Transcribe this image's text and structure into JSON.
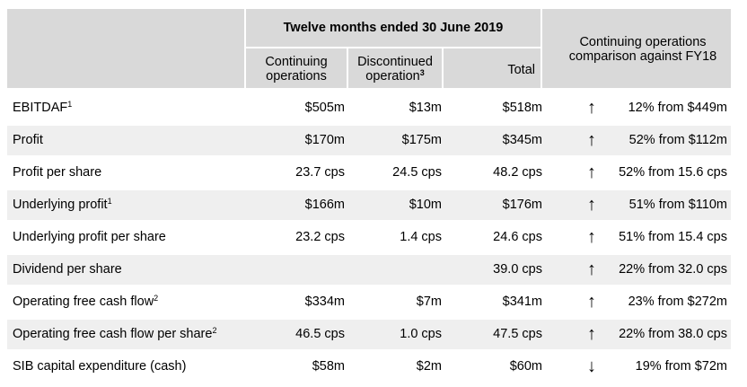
{
  "header": {
    "period": "Twelve months ended 30 June 2019",
    "col_continuing": "Continuing operations",
    "col_discontinued": "Discontinued operation",
    "col_discontinued_sup": "3",
    "col_total": "Total",
    "col_comparison": "Continuing operations comparison against FY18"
  },
  "rows": [
    {
      "label": "EBITDAF",
      "sup": "1",
      "continuing": "$505m",
      "discontinued": "$13m",
      "total": "$518m",
      "arrow": "↑",
      "comparison": "12% from $449m"
    },
    {
      "label": "Profit",
      "sup": "",
      "continuing": "$170m",
      "discontinued": "$175m",
      "total": "$345m",
      "arrow": "↑",
      "comparison": "52% from $112m"
    },
    {
      "label": "Profit per share",
      "sup": "",
      "continuing": "23.7 cps",
      "discontinued": "24.5 cps",
      "total": "48.2 cps",
      "arrow": "↑",
      "comparison": "52% from 15.6 cps"
    },
    {
      "label": "Underlying profit",
      "sup": "1",
      "continuing": "$166m",
      "discontinued": "$10m",
      "total": "$176m",
      "arrow": "↑",
      "comparison": "51% from $110m"
    },
    {
      "label": "Underlying profit per share",
      "sup": "",
      "continuing": "23.2 cps",
      "discontinued": "1.4 cps",
      "total": "24.6 cps",
      "arrow": "↑",
      "comparison": "51% from 15.4 cps"
    },
    {
      "label": "Dividend per share",
      "sup": "",
      "continuing": "",
      "discontinued": "",
      "total": "39.0 cps",
      "arrow": "↑",
      "comparison": "22% from 32.0 cps"
    },
    {
      "label": "Operating free cash flow",
      "sup": "2",
      "continuing": "$334m",
      "discontinued": "$7m",
      "total": "$341m",
      "arrow": "↑",
      "comparison": "23% from $272m"
    },
    {
      "label": "Operating free cash flow per share",
      "sup": "2",
      "continuing": "46.5 cps",
      "discontinued": "1.0 cps",
      "total": "47.5 cps",
      "arrow": "↑",
      "comparison": "22% from 38.0 cps"
    },
    {
      "label": "SIB capital expenditure (cash)",
      "sup": "",
      "continuing": "$58m",
      "discontinued": "$2m",
      "total": "$60m",
      "arrow": "↓",
      "comparison": "19% from $72m"
    }
  ]
}
